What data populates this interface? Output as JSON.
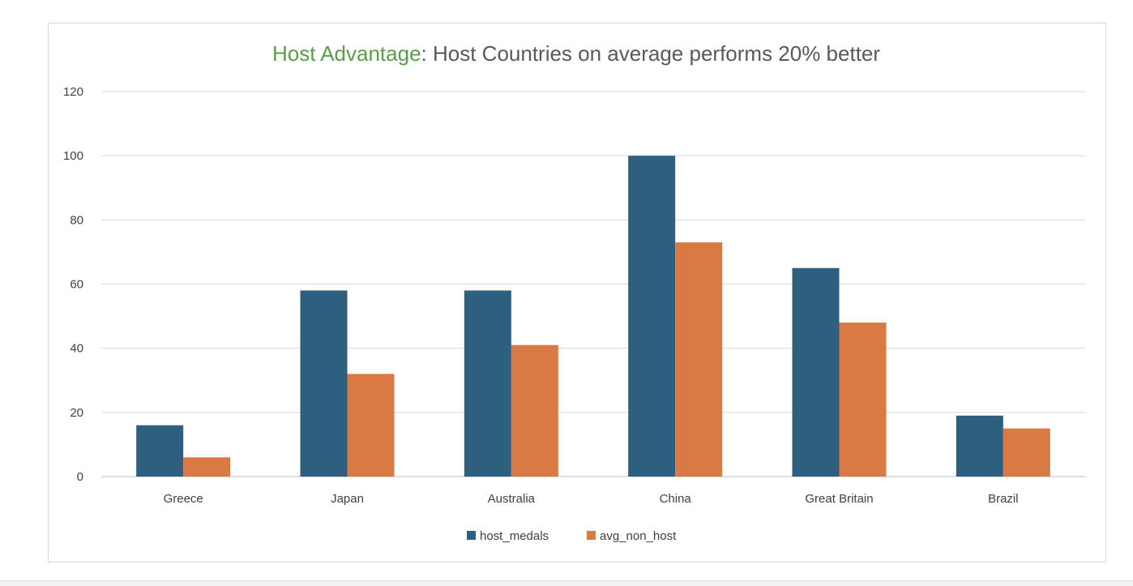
{
  "chart_data": {
    "type": "bar",
    "title_highlight": "Host Advantage",
    "title_rest": ":  Host Countries on average performs 20% better",
    "categories": [
      "Greece",
      "Japan",
      "Australia",
      "China",
      "Great Britain",
      "Brazil"
    ],
    "series": [
      {
        "name": "host_medals",
        "color": "#2e5f7f",
        "values": [
          16,
          58,
          58,
          100,
          65,
          19
        ]
      },
      {
        "name": "avg_non_host",
        "color": "#d97944",
        "values": [
          6,
          32,
          41,
          73,
          48,
          15
        ]
      }
    ],
    "ylim": [
      0,
      120
    ],
    "yticks": [
      0,
      20,
      40,
      60,
      80,
      100,
      120
    ],
    "grid": true,
    "legend_position": "bottom",
    "title_highlight_color": "#5a9e47",
    "title_color": "#595959"
  }
}
